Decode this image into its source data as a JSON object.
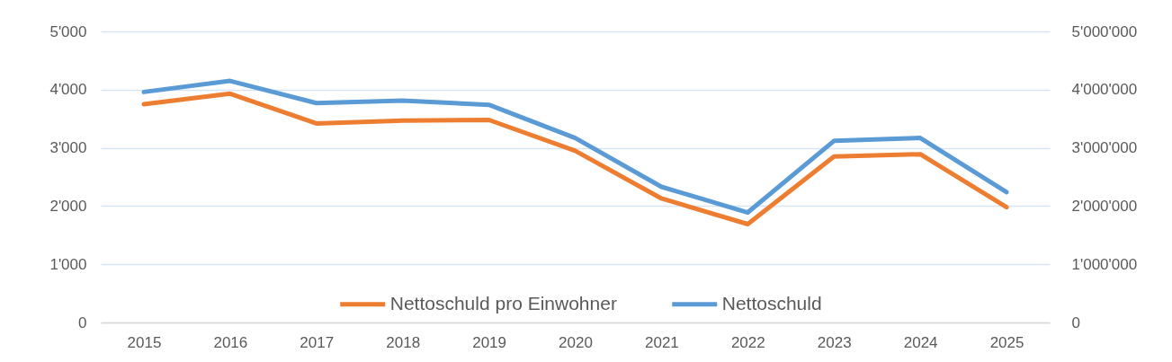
{
  "chart_data": {
    "type": "line",
    "categories": [
      "2015",
      "2016",
      "2017",
      "2018",
      "2019",
      "2020",
      "2021",
      "2022",
      "2023",
      "2024",
      "2025"
    ],
    "series": [
      {
        "name": "Nettoschuld pro Einwohner",
        "color": "#ed7d31",
        "values": [
          3750,
          3930,
          3420,
          3470,
          3480,
          2950,
          2130,
          1690,
          2850,
          2890,
          1980
        ]
      },
      {
        "name": "Nettoschuld",
        "color": "#5b9bd5",
        "axis": "y2",
        "values": [
          3960000,
          4150000,
          3770000,
          3810000,
          3740000,
          3170000,
          2330000,
          1890000,
          3120000,
          3170000,
          2240000
        ]
      }
    ],
    "ylim": [
      0,
      5000
    ],
    "yticks": [
      0,
      {
        "value": 1000,
        "label": "1'000"
      },
      {
        "value": 2000,
        "label": "2'000"
      },
      {
        "value": 3000,
        "label": "3'000"
      },
      {
        "value": 4000,
        "label": "4'000"
      },
      {
        "value": 5000,
        "label": "5'000"
      }
    ],
    "y2lim": [
      0,
      5000000
    ],
    "y2ticks": [
      0,
      {
        "value": 1000000,
        "label": "1'000'000"
      },
      {
        "value": 2000000,
        "label": "2'000'000"
      },
      {
        "value": 3000000,
        "label": "3'000'000"
      },
      {
        "value": 4000000,
        "label": "4'000'000"
      },
      {
        "value": 5000000,
        "label": "5'000'000"
      }
    ],
    "grid": "y",
    "legend": "bottom",
    "marker": "none",
    "line_style": "solid"
  }
}
